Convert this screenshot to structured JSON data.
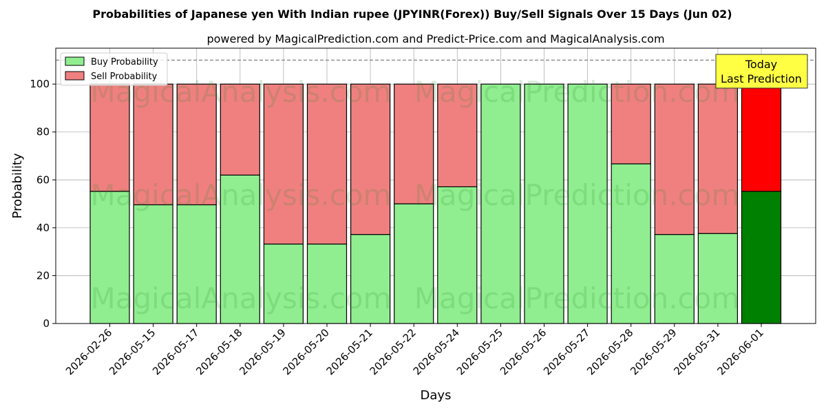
{
  "chart_data": {
    "type": "bar",
    "stacked": true,
    "title": "Probabilities of Japanese yen With Indian rupee (JPYINR(Forex)) Buy/Sell Signals Over 15 Days (Jun 02)",
    "subtitle": "powered by MagicalPrediction.com and Predict-Price.com and MagicalAnalysis.com",
    "xlabel": "Days",
    "ylabel": "Probability",
    "ylim": [
      0,
      115
    ],
    "yticks": [
      0,
      20,
      40,
      60,
      80,
      100
    ],
    "grid": true,
    "reference_line": {
      "y": 110,
      "style": "dashed"
    },
    "categories": [
      "2026-02-26",
      "2026-05-15",
      "2026-05-17",
      "2026-05-18",
      "2026-05-19",
      "2026-05-20",
      "2026-05-21",
      "2026-05-22",
      "2026-05-24",
      "2026-05-25",
      "2026-05-26",
      "2026-05-27",
      "2026-05-28",
      "2026-05-29",
      "2026-05-31",
      "2026-06-01"
    ],
    "series": [
      {
        "name": "Buy Probability",
        "color": "#90ee90",
        "highlight_color": "#008000",
        "values": [
          55.2,
          49.6,
          49.6,
          62.0,
          33.2,
          33.2,
          37.2,
          50.0,
          57.1,
          100,
          100,
          100,
          66.7,
          37.2,
          37.6,
          55.2
        ]
      },
      {
        "name": "Sell Probability",
        "color": "#f08080",
        "highlight_color": "#ff0000",
        "values": [
          44.8,
          50.4,
          50.4,
          38.0,
          66.8,
          66.8,
          62.8,
          50.0,
          42.9,
          0,
          0,
          0,
          33.3,
          62.8,
          62.4,
          44.8
        ]
      }
    ],
    "highlight_index": 15,
    "legend_position": "top-left",
    "annotation": {
      "lines": [
        "Today",
        "Last Prediction"
      ],
      "background": "#ffff44",
      "position": "top-right"
    },
    "watermarks": [
      "MagicalAnalysis.com",
      "MagicalPrediction.com"
    ]
  }
}
